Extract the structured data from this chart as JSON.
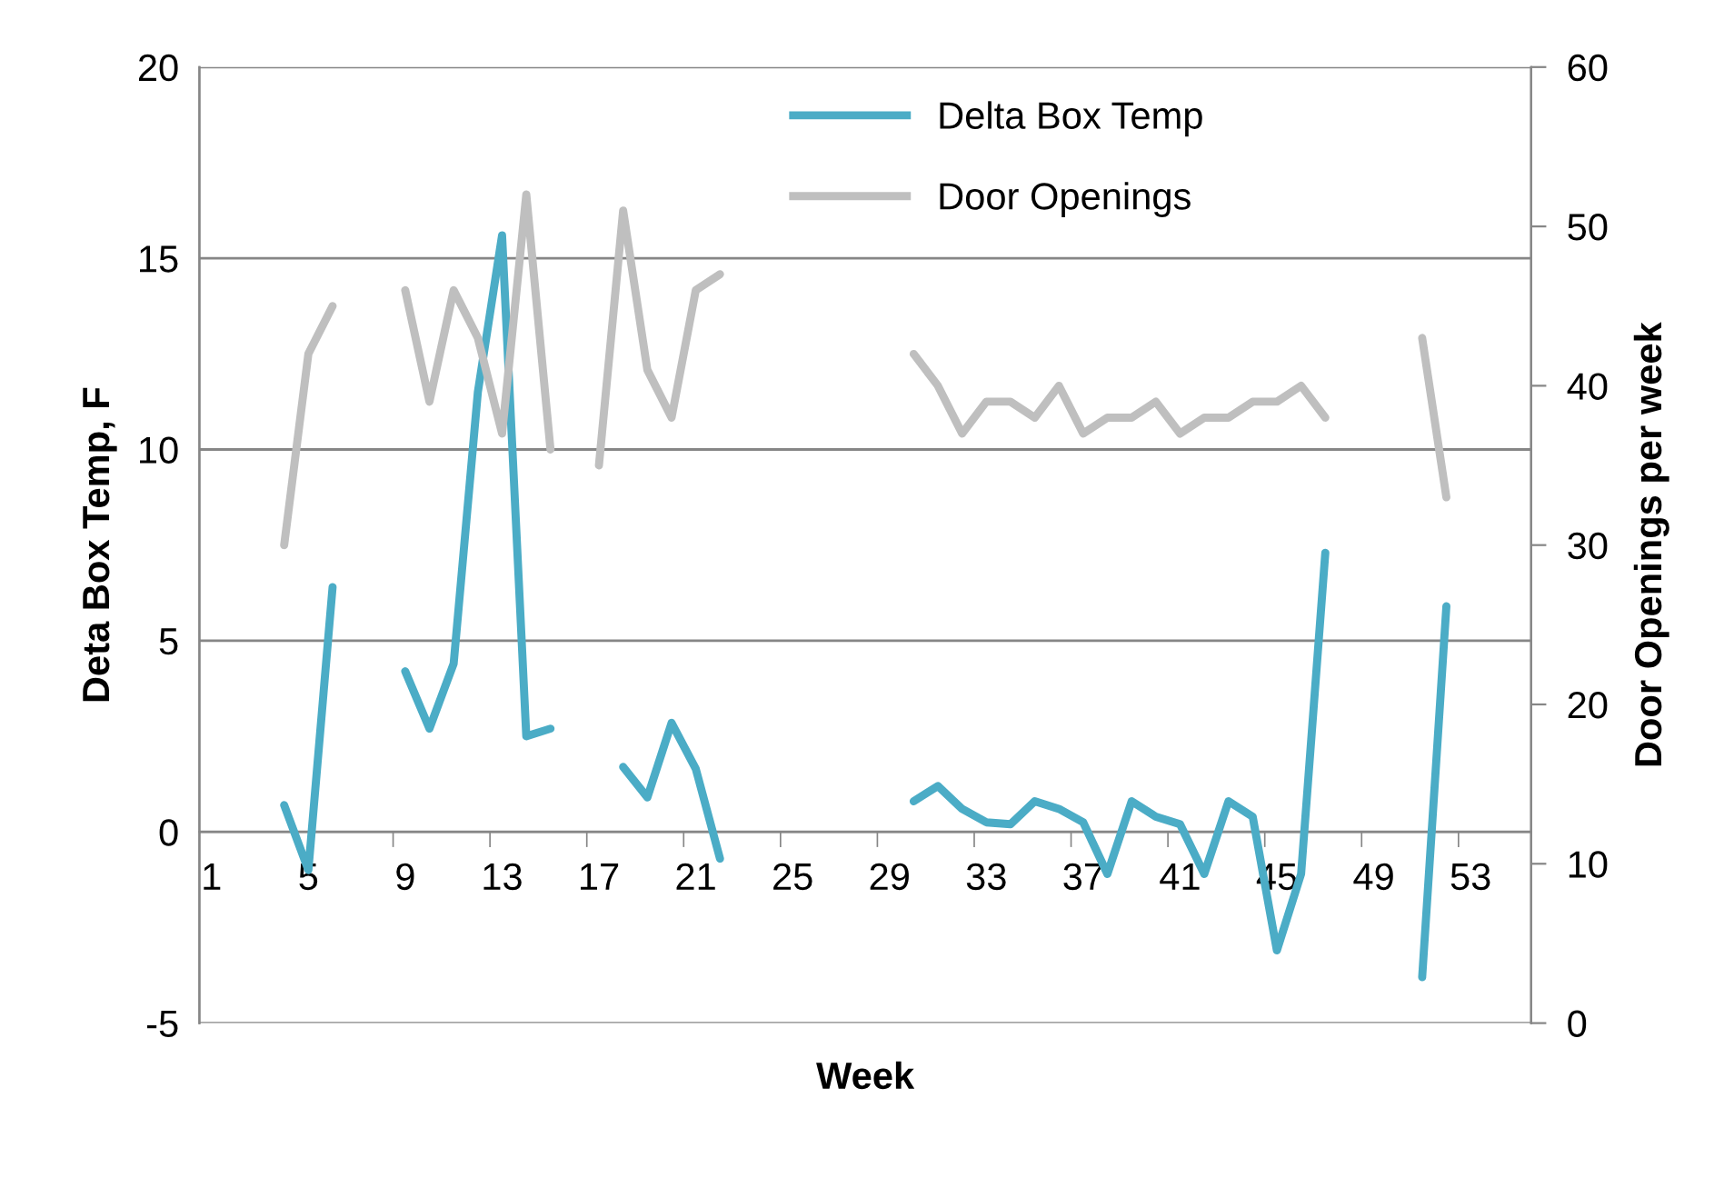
{
  "chart_data": {
    "type": "line",
    "categories": [
      "1",
      null,
      null,
      null,
      "5",
      null,
      null,
      null,
      "9",
      null,
      null,
      null,
      "13",
      null,
      null,
      null,
      "17",
      null,
      null,
      null,
      "21",
      null,
      null,
      null,
      "25",
      null,
      null,
      null,
      "29",
      null,
      null,
      null,
      "33",
      null,
      null,
      null,
      "37",
      null,
      null,
      null,
      "41",
      null,
      null,
      null,
      "45",
      null,
      null,
      null,
      "49",
      null,
      null,
      null,
      "53",
      null,
      null
    ],
    "xlabel": "Week",
    "ylabel": "Deta Box Temp, F",
    "y2label": "Door Openings per week",
    "ylim": [
      -5,
      20
    ],
    "yticks": [
      -5,
      0,
      5,
      10,
      15,
      20
    ],
    "y2lim": [
      0,
      60
    ],
    "y2ticks": [
      0,
      10,
      20,
      30,
      40,
      50,
      60
    ],
    "grid": "y",
    "legend": "top",
    "marker": "none",
    "line_style": "solid",
    "series": [
      {
        "name": "Delta Box Temp",
        "color": "#4bacc6",
        "values": [
          null,
          null,
          null,
          0.7,
          -1.0,
          6.4,
          null,
          null,
          4.2,
          2.7,
          4.4,
          11.5,
          15.6,
          2.5,
          2.7,
          null,
          null,
          1.7,
          0.9,
          2.85,
          1.65,
          -0.7,
          null,
          null,
          null,
          null,
          null,
          null,
          null,
          0.8,
          1.2,
          0.6,
          0.25,
          0.2,
          0.8,
          0.6,
          0.25,
          -1.1,
          0.8,
          0.4,
          0.2,
          -1.1,
          0.8,
          0.4,
          -3.1,
          -1.1,
          7.3,
          null,
          null,
          null,
          -3.8,
          5.9,
          null,
          null,
          null
        ]
      },
      {
        "name": "Door Openings",
        "color": "#bfbfbf",
        "axis": "y2",
        "values": [
          null,
          null,
          null,
          30,
          42,
          45,
          null,
          null,
          46,
          39,
          46,
          43,
          37,
          52,
          36,
          null,
          35,
          51,
          41,
          38,
          46,
          47,
          null,
          null,
          null,
          null,
          null,
          null,
          null,
          42,
          40,
          37,
          39,
          39,
          38,
          40,
          37,
          38,
          38,
          39,
          37,
          38,
          38,
          39,
          39,
          40,
          38,
          null,
          null,
          null,
          43,
          33,
          null,
          null,
          null
        ]
      }
    ]
  }
}
